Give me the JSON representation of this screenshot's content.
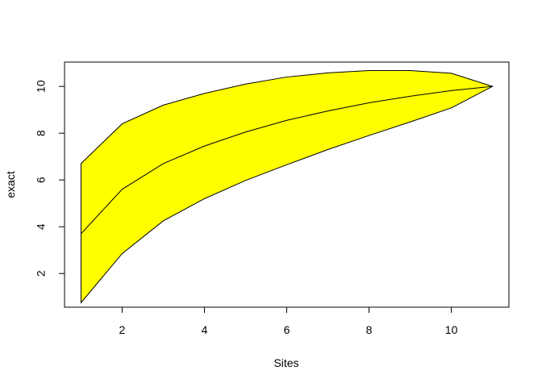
{
  "chart_data": {
    "type": "area",
    "title": "",
    "xlabel": "Sites",
    "ylabel": "exact",
    "xlim": [
      0.6,
      11.4
    ],
    "ylim": [
      0.56,
      11.04
    ],
    "x_ticks": [
      2,
      4,
      6,
      8,
      10
    ],
    "y_ticks": [
      2,
      4,
      6,
      8,
      10
    ],
    "x": [
      1,
      2,
      3,
      4,
      5,
      6,
      7,
      8,
      9,
      10,
      11
    ],
    "series": [
      {
        "role": "upper",
        "values": [
          6.7,
          8.4,
          9.2,
          9.7,
          10.1,
          10.4,
          10.58,
          10.68,
          10.68,
          10.56,
          10.0
        ]
      },
      {
        "role": "mean",
        "values": [
          3.7,
          5.6,
          6.7,
          7.45,
          8.05,
          8.55,
          8.95,
          9.3,
          9.58,
          9.82,
          10.0
        ]
      },
      {
        "role": "lower",
        "values": [
          0.75,
          2.85,
          4.25,
          5.2,
          5.98,
          6.65,
          7.3,
          7.9,
          8.48,
          9.08,
          10.0
        ]
      }
    ],
    "band_color": "#ffff00",
    "line_color": "#000000",
    "grid": false,
    "legend": "none"
  }
}
